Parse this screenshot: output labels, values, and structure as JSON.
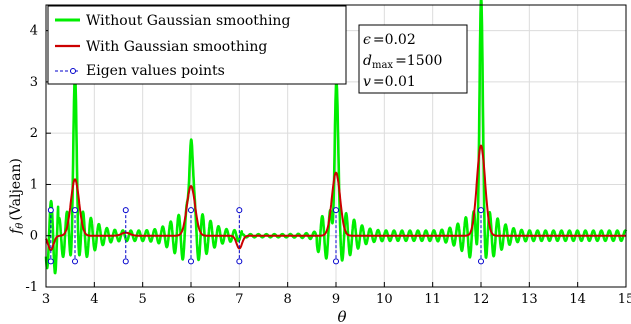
{
  "chart_data": {
    "type": "line",
    "title": "",
    "xlabel": "θ",
    "ylabel_symbol": "f",
    "ylabel_sub": "θ",
    "ylabel_text": "(Valjean)",
    "xlim": [
      3,
      15
    ],
    "ylim": [
      -1,
      4.5
    ],
    "xticks": [
      3,
      4,
      5,
      6,
      7,
      8,
      9,
      10,
      11,
      12,
      13,
      14,
      15
    ],
    "yticks": [
      -1,
      0,
      1,
      2,
      3,
      4
    ],
    "grid": true,
    "legend_position": "top-left",
    "series": [
      {
        "name": "Without Gaussian smoothing",
        "color": "#00ee00",
        "peaks": [
          {
            "x": 3.6,
            "y": 2.62
          },
          {
            "x": 6.0,
            "y": 2.36
          },
          {
            "x": 9.0,
            "y": 3.0
          },
          {
            "x": 12.0,
            "y": 4.2
          }
        ],
        "oscillation_period": 0.165,
        "oscillation_amplitude_approx": [
          0.1,
          0.7
        ]
      },
      {
        "name": "With Gaussian smoothing",
        "color": "#cc0000",
        "peaks": [
          {
            "x": 3.6,
            "y": 1.1
          },
          {
            "x": 4.65,
            "y": 0.06
          },
          {
            "x": 6.0,
            "y": 0.97
          },
          {
            "x": 9.0,
            "y": 1.23
          },
          {
            "x": 12.0,
            "y": 1.76
          }
        ],
        "dips": [
          {
            "x": 3.1,
            "y": -0.28
          },
          {
            "x": 7.0,
            "y": -0.25
          }
        ]
      },
      {
        "name": "Eigen values points",
        "color": "#0000cc",
        "style": "dashed stems with circle markers",
        "x": [
          3.1,
          3.6,
          4.65,
          6.0,
          7.0,
          9.0,
          12.0
        ],
        "stem_top": 0.5,
        "stem_bottom": -0.5
      }
    ],
    "parameters": [
      {
        "symbol": "ϵ",
        "sub": "",
        "value": "=0.02"
      },
      {
        "symbol": "d",
        "sub": "max",
        "value": "=1500"
      },
      {
        "symbol": "v",
        "sub": "",
        "value": "=0.01"
      }
    ]
  }
}
